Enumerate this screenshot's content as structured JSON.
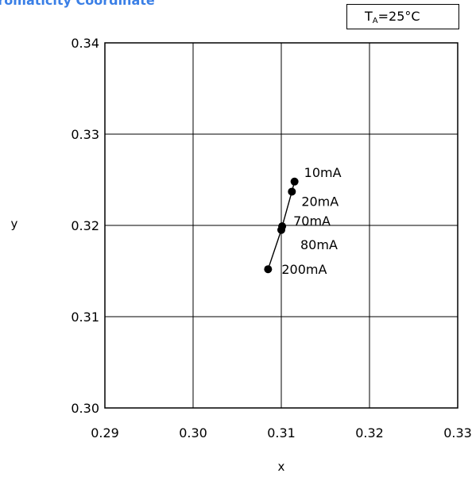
{
  "chart_title": "hromaticity Coordinate",
  "condition": {
    "prefix": "T",
    "subscript": "A",
    "suffix": "=25°C"
  },
  "chart_data": {
    "type": "line",
    "title": "hromaticity Coordinate",
    "xlabel": "x",
    "ylabel": "y",
    "xlim": [
      0.29,
      0.33
    ],
    "ylim": [
      0.3,
      0.34
    ],
    "x_ticks": [
      "0.29",
      "0.30",
      "0.31",
      "0.32",
      "0.33"
    ],
    "y_ticks": [
      "0.30",
      "0.31",
      "0.32",
      "0.33",
      "0.34"
    ],
    "grid": true,
    "line_color": "#000000",
    "series": [
      {
        "points": [
          {
            "x": 0.3115,
            "y": 0.3248,
            "label": "10mA"
          },
          {
            "x": 0.3112,
            "y": 0.3237,
            "label": "20mA"
          },
          {
            "x": 0.3101,
            "y": 0.3199,
            "label": "70mA"
          },
          {
            "x": 0.31,
            "y": 0.3195,
            "label": "80mA"
          },
          {
            "x": 0.3085,
            "y": 0.3152,
            "label": "200mA"
          }
        ]
      }
    ]
  }
}
